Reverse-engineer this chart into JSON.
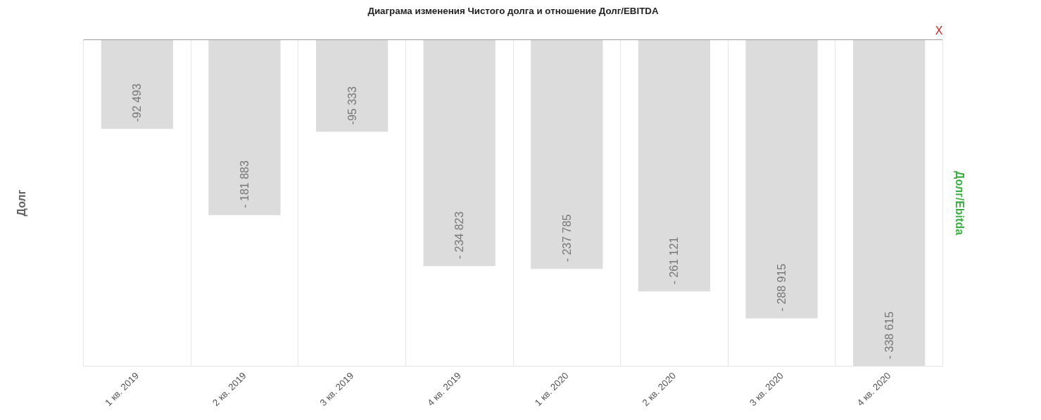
{
  "chart_data": {
    "type": "bar",
    "title": "Диаграма изменения Чистого долга и отношение Долг/EBITDA",
    "ylabel": "Долг",
    "y2label": "Долг/Ebitda",
    "categories": [
      "1 кв. 2019",
      "2 кв. 2019",
      "3 кв. 2019",
      "4 кв. 2019",
      "1 кв. 2020",
      "2 кв. 2020",
      "3 кв. 2020",
      "4 кв. 2020"
    ],
    "values": [
      -92493,
      -181883,
      -95333,
      -234823,
      -237785,
      -261121,
      -288915,
      -338615
    ],
    "value_labels": [
      "-92 493",
      "- 181 883",
      "-95 333",
      "- 234 823",
      "- 237 785",
      "- 261 121",
      "- 288 915",
      "- 338 615"
    ],
    "color": "#dcdcdc",
    "grid": "x",
    "annotations": [
      "X"
    ]
  }
}
